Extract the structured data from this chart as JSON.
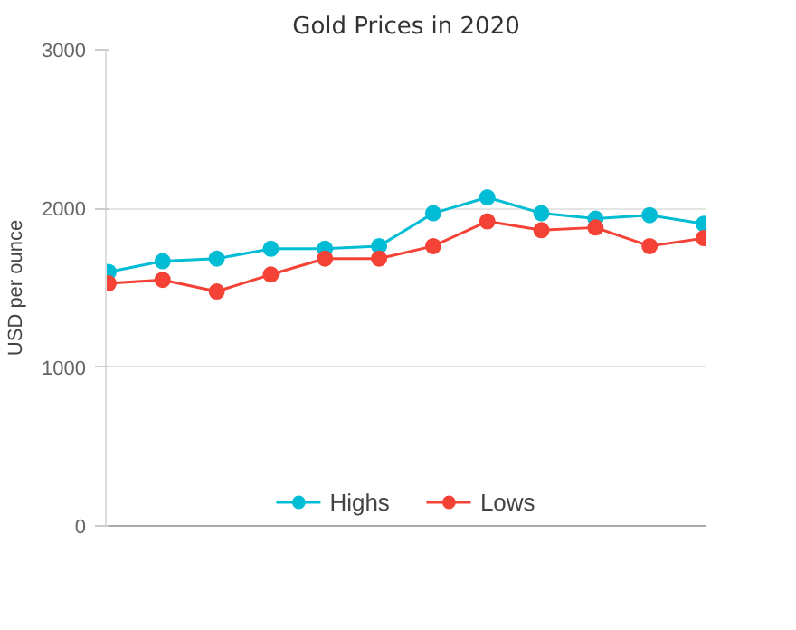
{
  "chart_data": {
    "type": "line",
    "title": "Gold Prices in 2020",
    "ylabel": "USD per ounce",
    "categories": [
      null,
      null,
      null,
      null,
      null,
      null,
      null,
      null,
      null,
      null,
      null,
      null
    ],
    "series": [
      {
        "name": "Highs",
        "color": "#00bcd4",
        "values": [
          1600,
          1668,
          1684,
          1746,
          1746,
          1763,
          1970,
          2070,
          1970,
          1936,
          1958,
          1903
        ]
      },
      {
        "name": "Lows",
        "color": "#f44336",
        "values": [
          1528,
          1550,
          1477,
          1584,
          1684,
          1684,
          1763,
          1919,
          1863,
          1880,
          1763,
          1813
        ]
      }
    ],
    "ylim": [
      0,
      3000
    ],
    "yticks": [
      0,
      1000,
      2000,
      3000
    ],
    "grid": "y",
    "legend": "bottom",
    "marker": "circle"
  }
}
